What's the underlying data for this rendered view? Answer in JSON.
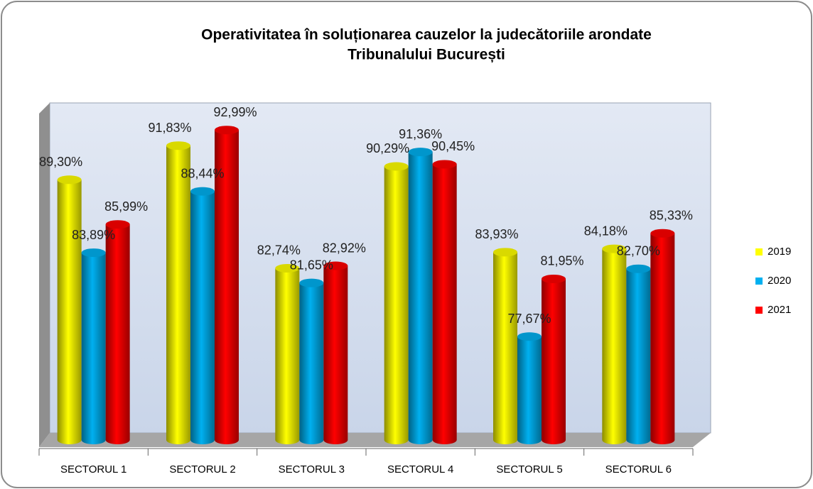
{
  "chart_data": {
    "type": "bar3d",
    "title": "Operativitatea în soluționarea cauzelor la judecătoriile arondate",
    "subtitle": "Tribunalului București",
    "categories": [
      "SECTORUL 1",
      "SECTORUL 2",
      "SECTORUL 3",
      "SECTORUL 4",
      "SECTORUL 5",
      "SECTORUL 6"
    ],
    "series": [
      {
        "name": "2019",
        "color": "#ffff00",
        "values": [
          89.3,
          91.83,
          82.74,
          90.29,
          83.93,
          84.18
        ],
        "value_labels": [
          "89,30%",
          "91,83%",
          "82,74%",
          "90,29%",
          "83,93%",
          "84,18%"
        ]
      },
      {
        "name": "2020",
        "color": "#00b0f0",
        "values": [
          83.89,
          88.44,
          81.65,
          91.36,
          77.67,
          82.7
        ],
        "value_labels": [
          "83,89%",
          "88,44%",
          "81,65%",
          "91,36%",
          "77,67%",
          "82,70%"
        ]
      },
      {
        "name": "2021",
        "color": "#ff0000",
        "values": [
          85.99,
          92.99,
          82.92,
          90.45,
          81.95,
          85.33
        ],
        "value_labels": [
          "85,99%",
          "92,99%",
          "82,92%",
          "90,45%",
          "81,95%",
          "85,33%"
        ]
      }
    ],
    "ylim": [
      70,
      95
    ],
    "legend": "right"
  }
}
